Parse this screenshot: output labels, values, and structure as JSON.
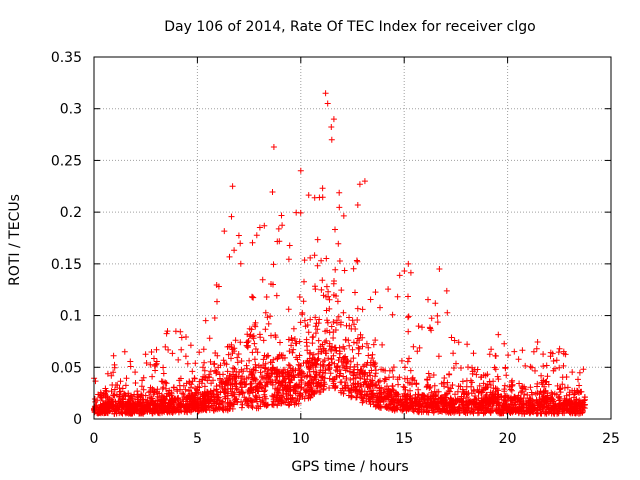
{
  "chart_data": {
    "type": "scatter",
    "title": "Day 106 of 2014, Rate Of TEC Index for receiver clgo",
    "xlabel": "GPS time / hours",
    "ylabel": "ROTI / TECUs",
    "xlim": [
      0,
      25
    ],
    "ylim": [
      0,
      0.35
    ],
    "xticks": [
      0,
      5,
      10,
      15,
      20,
      25
    ],
    "xtick_labels": [
      "0",
      "5",
      "10",
      "15",
      "20",
      "25"
    ],
    "yticks": [
      0,
      0.05,
      0.1,
      0.15,
      0.2,
      0.25,
      0.3,
      0.35
    ],
    "ytick_labels": [
      "0",
      "0.05",
      "0.1",
      "0.15",
      "0.2",
      "0.25",
      "0.3",
      "0.35"
    ],
    "grid": true,
    "marker": "plus",
    "marker_color": "#ff0000",
    "series": [
      {
        "name": "ROTI",
        "x_range": [
          0,
          23.75
        ],
        "envelope": {
          "x": [
            0.0,
            1.0,
            2.0,
            3.0,
            4.0,
            5.0,
            6.0,
            6.5,
            7.0,
            7.5,
            8.0,
            8.5,
            9.0,
            9.5,
            10.0,
            10.5,
            11.0,
            11.2,
            11.5,
            12.0,
            12.5,
            13.0,
            13.5,
            14.0,
            14.5,
            15.0,
            15.5,
            16.0,
            17.0,
            18.0,
            19.0,
            20.0,
            21.0,
            22.0,
            23.0,
            23.75
          ],
          "y_floor": [
            0.005,
            0.005,
            0.005,
            0.005,
            0.006,
            0.007,
            0.008,
            0.008,
            0.01,
            0.01,
            0.01,
            0.012,
            0.012,
            0.012,
            0.015,
            0.02,
            0.025,
            0.03,
            0.03,
            0.025,
            0.02,
            0.015,
            0.012,
            0.01,
            0.008,
            0.008,
            0.007,
            0.006,
            0.006,
            0.005,
            0.005,
            0.005,
            0.005,
            0.005,
            0.005,
            0.005
          ],
          "y_typical": [
            0.02,
            0.03,
            0.025,
            0.03,
            0.035,
            0.04,
            0.05,
            0.07,
            0.08,
            0.09,
            0.09,
            0.085,
            0.08,
            0.08,
            0.09,
            0.1,
            0.12,
            0.13,
            0.12,
            0.11,
            0.09,
            0.08,
            0.06,
            0.05,
            0.045,
            0.04,
            0.04,
            0.04,
            0.035,
            0.03,
            0.035,
            0.04,
            0.03,
            0.035,
            0.03,
            0.025
          ],
          "y_peak": [
            0.04,
            0.07,
            0.06,
            0.08,
            0.09,
            0.1,
            0.14,
            0.22,
            0.18,
            0.17,
            0.2,
            0.26,
            0.2,
            0.24,
            0.25,
            0.23,
            0.27,
            0.31,
            0.28,
            0.24,
            0.22,
            0.23,
            0.18,
            0.14,
            0.16,
            0.15,
            0.14,
            0.12,
            0.13,
            0.08,
            0.06,
            0.1,
            0.07,
            0.09,
            0.07,
            0.05
          ]
        },
        "notable_points": [
          {
            "x": 11.2,
            "y": 0.315
          },
          {
            "x": 11.3,
            "y": 0.305
          },
          {
            "x": 11.6,
            "y": 0.29
          },
          {
            "x": 11.5,
            "y": 0.27
          },
          {
            "x": 8.7,
            "y": 0.263
          },
          {
            "x": 10.0,
            "y": 0.24
          },
          {
            "x": 6.7,
            "y": 0.225
          },
          {
            "x": 13.1,
            "y": 0.23
          },
          {
            "x": 15.2,
            "y": 0.15
          },
          {
            "x": 16.7,
            "y": 0.145
          }
        ]
      }
    ]
  }
}
